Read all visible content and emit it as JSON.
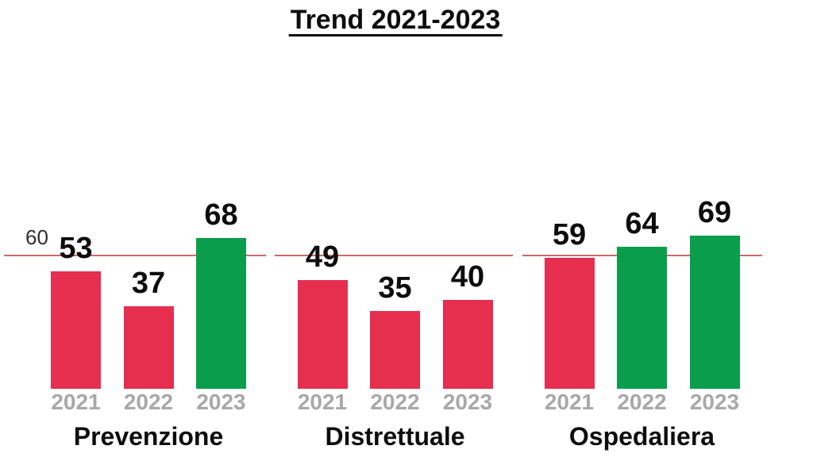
{
  "title": {
    "text": "Trend 2021-2023"
  },
  "reference_line": {
    "label": "60",
    "value": 60
  },
  "colors": {
    "bar_red": "#e62e4f",
    "bar_green": "#0a9e4c",
    "ref_line": "#c96a6a",
    "year_label": "#a8a8a8",
    "text": "#0d0d0d",
    "ref_label": "#2f2f2f",
    "background": "#ffffff"
  },
  "chart_data": {
    "type": "bar",
    "title": "Trend 2021-2023",
    "categories": [
      "2021",
      "2022",
      "2023"
    ],
    "groups": [
      {
        "label": "Prevenzione",
        "values": [
          53,
          37,
          68
        ],
        "bar_colors": [
          "red",
          "red",
          "green"
        ]
      },
      {
        "label": "Distrettuale",
        "values": [
          49,
          35,
          40
        ],
        "bar_colors": [
          "red",
          "red",
          "red"
        ]
      },
      {
        "label": "Ospedaliera",
        "values": [
          59,
          64,
          69
        ],
        "bar_colors": [
          "red",
          "green",
          "green"
        ]
      }
    ],
    "reference_line": {
      "value": 60,
      "label": "60"
    },
    "ylim": [
      0,
      75
    ],
    "grid": false,
    "legend": false,
    "value_labels": "above bars, bold black",
    "category_label_color": "gray"
  }
}
